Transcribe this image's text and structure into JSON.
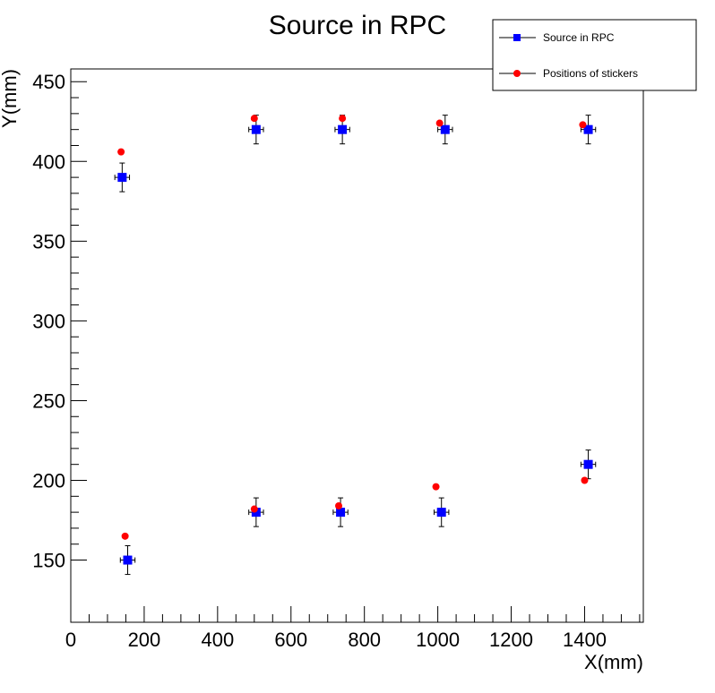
{
  "chart_data": {
    "type": "scatter",
    "title": "Source in RPC",
    "xlabel": "X(mm)",
    "ylabel": "Y(mm)",
    "xlim": [
      0,
      1560
    ],
    "ylim": [
      111,
      458
    ],
    "x_ticks": [
      0,
      200,
      400,
      600,
      800,
      1000,
      1200,
      1400
    ],
    "y_ticks": [
      150,
      200,
      250,
      300,
      350,
      400,
      450
    ],
    "grid": false,
    "legend_position": "top-right",
    "series": [
      {
        "name": "Source in RPC",
        "marker": "square",
        "color": "#0000ff",
        "has_error_bars": true,
        "points": [
          {
            "x": 140,
            "y": 390,
            "xerr": 20,
            "yerr": 9
          },
          {
            "x": 155,
            "y": 150,
            "xerr": 20,
            "yerr": 9
          },
          {
            "x": 505,
            "y": 420,
            "xerr": 20,
            "yerr": 9
          },
          {
            "x": 505,
            "y": 180,
            "xerr": 20,
            "yerr": 9
          },
          {
            "x": 740,
            "y": 420,
            "xerr": 20,
            "yerr": 9
          },
          {
            "x": 735,
            "y": 180,
            "xerr": 20,
            "yerr": 9
          },
          {
            "x": 1020,
            "y": 420,
            "xerr": 20,
            "yerr": 9
          },
          {
            "x": 1010,
            "y": 180,
            "xerr": 20,
            "yerr": 9
          },
          {
            "x": 1410,
            "y": 420,
            "xerr": 20,
            "yerr": 9
          },
          {
            "x": 1410,
            "y": 210,
            "xerr": 20,
            "yerr": 9
          }
        ]
      },
      {
        "name": "Positions of stickers",
        "marker": "circle",
        "color": "#ff0000",
        "has_error_bars": false,
        "points": [
          {
            "x": 137,
            "y": 406
          },
          {
            "x": 148,
            "y": 165
          },
          {
            "x": 500,
            "y": 427
          },
          {
            "x": 500,
            "y": 182
          },
          {
            "x": 740,
            "y": 427
          },
          {
            "x": 730,
            "y": 184
          },
          {
            "x": 1005,
            "y": 424
          },
          {
            "x": 995,
            "y": 196
          },
          {
            "x": 1395,
            "y": 423
          },
          {
            "x": 1400,
            "y": 200
          }
        ]
      }
    ]
  }
}
